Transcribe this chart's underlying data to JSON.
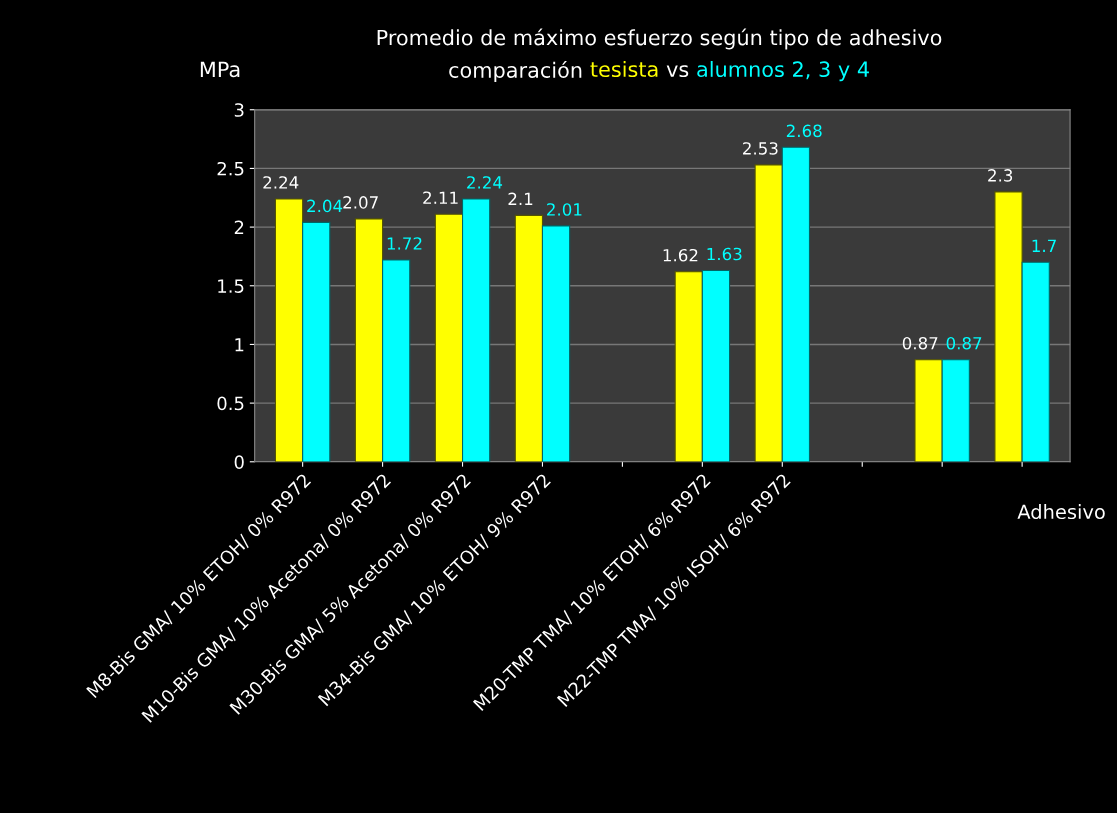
{
  "chart_data": {
    "type": "bar",
    "title": "Promedio de máximo esfuerzo según tipo de adhesivo",
    "annotations": [
      "comparación",
      "vs"
    ],
    "ylabel": "MPa",
    "xlabel": "Adhesivo",
    "categories": [
      "M8-Bis GMA/ 10% ETOH/ 0% R972",
      "M10-Bis GMA/ 10% Acetona/ 0% R972",
      "M30-Bis GMA/ 5% Acetona/ 0% R972",
      "M34-Bis GMA/ 10% ETOH/ 9% R972",
      null,
      "M20-TMP TMA/ 10% ETOH/ 6% R972",
      "M22-TMP TMA/ 10% ISOH/ 6% R972",
      null,
      null,
      null
    ],
    "series": [
      {
        "name": "tesista",
        "color": "#ffff00",
        "values": [
          2.24,
          2.07,
          2.11,
          2.1,
          null,
          1.62,
          2.53,
          null,
          0.87,
          2.3
        ]
      },
      {
        "name": "alumnos 2, 3 y 4",
        "color": "#00ffff",
        "values": [
          2.04,
          1.72,
          2.24,
          2.01,
          null,
          1.63,
          2.68,
          null,
          0.87,
          1.7
        ]
      }
    ],
    "ylim": [
      0,
      3
    ],
    "yticks": [
      0,
      0.5,
      1,
      1.5,
      2,
      2.5,
      3
    ],
    "grid": "y",
    "data_labels": true,
    "legend": false
  }
}
